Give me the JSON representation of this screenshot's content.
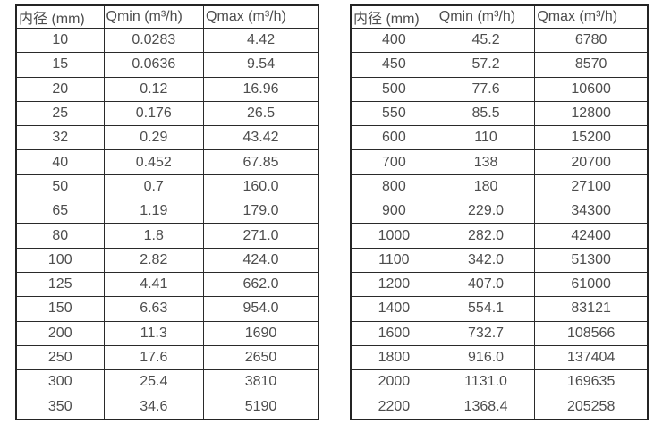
{
  "page": {
    "background_color": "#ffffff",
    "border_color": "#242424",
    "text_color": "#4d4d4d"
  },
  "tables": [
    {
      "name": "flow-table-small-diameters",
      "headers": [
        "内径 (mm)",
        "Qmin (m³/h)",
        "Qmax (m³/h)"
      ],
      "rows": [
        [
          "10",
          "0.0283",
          "4.42"
        ],
        [
          "15",
          "0.0636",
          "9.54"
        ],
        [
          "20",
          "0.12",
          "16.96"
        ],
        [
          "25",
          "0.176",
          "26.5"
        ],
        [
          "32",
          "0.29",
          "43.42"
        ],
        [
          "40",
          "0.452",
          "67.85"
        ],
        [
          "50",
          "0.7",
          "160.0"
        ],
        [
          "65",
          "1.19",
          "179.0"
        ],
        [
          "80",
          "1.8",
          "271.0"
        ],
        [
          "100",
          "2.82",
          "424.0"
        ],
        [
          "125",
          "4.41",
          "662.0"
        ],
        [
          "150",
          "6.63",
          "954.0"
        ],
        [
          "200",
          "11.3",
          "1690"
        ],
        [
          "250",
          "17.6",
          "2650"
        ],
        [
          "300",
          "25.4",
          "3810"
        ],
        [
          "350",
          "34.6",
          "5190"
        ]
      ]
    },
    {
      "name": "flow-table-large-diameters",
      "headers": [
        "内径 (mm)",
        "Qmin (m³/h)",
        "Qmax (m³/h)"
      ],
      "rows": [
        [
          "400",
          "45.2",
          "6780"
        ],
        [
          "450",
          "57.2",
          "8570"
        ],
        [
          "500",
          "77.6",
          "10600"
        ],
        [
          "550",
          "85.5",
          "12800"
        ],
        [
          "600",
          "110",
          "15200"
        ],
        [
          "700",
          "138",
          "20700"
        ],
        [
          "800",
          "180",
          "27100"
        ],
        [
          "900",
          "229.0",
          "34300"
        ],
        [
          "1000",
          "282.0",
          "42400"
        ],
        [
          "1100",
          "342.0",
          "51300"
        ],
        [
          "1200",
          "407.0",
          "61000"
        ],
        [
          "1400",
          "554.1",
          "83121"
        ],
        [
          "1600",
          "732.7",
          "108566"
        ],
        [
          "1800",
          "916.0",
          "137404"
        ],
        [
          "2000",
          "1131.0",
          "169635"
        ],
        [
          "2200",
          "1368.4",
          "205258"
        ]
      ]
    }
  ]
}
